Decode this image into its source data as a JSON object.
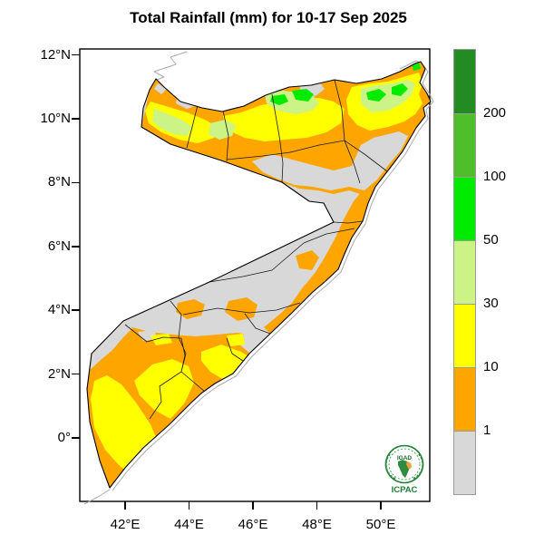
{
  "title": "Total Rainfall (mm) for 10-17 Sep 2025",
  "map": {
    "region": "Somalia",
    "y_axis": {
      "ticks": [
        {
          "label": "12°N",
          "lat": 12
        },
        {
          "label": "10°N",
          "lat": 10
        },
        {
          "label": "8°N",
          "lat": 8
        },
        {
          "label": "6°N",
          "lat": 6
        },
        {
          "label": "4°N",
          "lat": 4
        },
        {
          "label": "2°N",
          "lat": 2
        },
        {
          "label": "0°",
          "lat": 0
        }
      ]
    },
    "x_axis": {
      "ticks": [
        {
          "label": "42°E",
          "lon": 42
        },
        {
          "label": "44°E",
          "lon": 44
        },
        {
          "label": "46°E",
          "lon": 46
        },
        {
          "label": "48°E",
          "lon": 48
        },
        {
          "label": "50°E",
          "lon": 50
        }
      ]
    }
  },
  "legend": {
    "bands": [
      {
        "key": "dgreen",
        "range": "> 200",
        "color": "#228B22"
      },
      {
        "key": "mgreen",
        "range": "100-200",
        "color": "#4FBE2B"
      },
      {
        "key": "green",
        "range": "50-100",
        "color": "#00EB00"
      },
      {
        "key": "lgreen",
        "range": "30-50",
        "color": "#CBF385"
      },
      {
        "key": "yellow",
        "range": "10-30",
        "color": "#FFFF00"
      },
      {
        "key": "orange",
        "range": "1-10",
        "color": "#FFA500"
      },
      {
        "key": "gray",
        "range": "< 1",
        "color": "#D8D8D8"
      }
    ],
    "boundary_labels": [
      "200",
      "100",
      "50",
      "30",
      "10",
      "1"
    ]
  },
  "logo": {
    "igad": "IGAD",
    "icpac": "ICPAC",
    "green": "#1E7E34"
  },
  "chart_data": {
    "type": "heatmap",
    "title": "Total Rainfall (mm) for 10-17 Sep 2025",
    "units": "mm",
    "period": "10-17 Sep 2025",
    "region": "Somalia",
    "lon_range": [
      40.6,
      51.5
    ],
    "lat_range": [
      -2.0,
      12.2
    ],
    "thresholds": [
      1,
      10,
      30,
      50,
      100,
      200
    ],
    "scale": [
      {
        "range": "< 1 mm",
        "color": "#D8D8D8"
      },
      {
        "range": "1-10 mm",
        "color": "#FFA500"
      },
      {
        "range": "10-30 mm",
        "color": "#FFFF00"
      },
      {
        "range": "30-50 mm",
        "color": "#CBF385"
      },
      {
        "range": "50-100 mm",
        "color": "#00EB00"
      },
      {
        "range": "100-200 mm",
        "color": "#4FBE2B"
      },
      {
        "range": "> 200 mm",
        "color": "#228B22"
      }
    ],
    "pattern_summary": "Highest totals (50-200 mm, green) along the northern Somaliland/Puntland coast; 10-30 mm (yellow) bands in the north and southwest; 1-10 mm (orange) along southern and central coasts; below 1 mm (gray) across the central interior."
  }
}
